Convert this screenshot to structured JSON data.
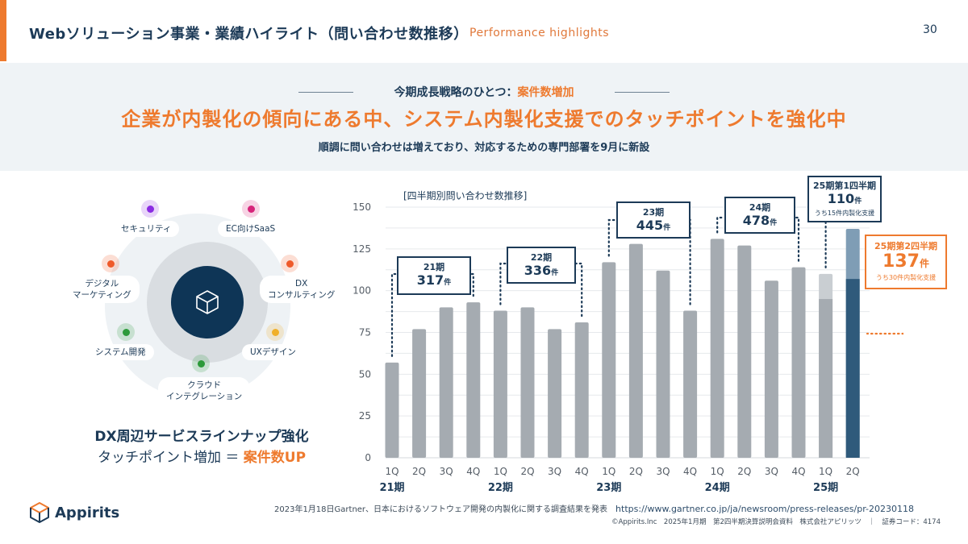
{
  "header": {
    "title": "Webソリューション事業・業績ハイライト（問い合わせ数推移）",
    "subtitle_en": "Performance highlights",
    "page_number": "30"
  },
  "banner": {
    "lead_prefix": "今期成長戦略のひとつ：",
    "lead_highlight": "案件数増加",
    "headline": "企業が内製化の傾向にある中、システム内製化支援でのタッチポイントを強化中",
    "description": "順調に問い合わせは増えており、対応するための専門部署を9月に新設"
  },
  "services": {
    "center_icon": "box-icon",
    "items": [
      {
        "label": "セキュリティ",
        "color": "#8a2be2"
      },
      {
        "label": "EC向けSaaS",
        "color": "#d6247a"
      },
      {
        "label": "DX\nコンサルティング",
        "color": "#ee5a2a"
      },
      {
        "label": "UXデザイン",
        "color": "#f0b02a"
      },
      {
        "label": "クラウド\nインテグレーション",
        "color": "#2c9a3a"
      },
      {
        "label": "システム開発",
        "color": "#2c9a3a"
      },
      {
        "label": "デジタル\nマーケティング",
        "color": "#ee5a2a"
      }
    ],
    "tagline": "DX周辺サービスラインナップ強化",
    "equation_prefix": "タッチポイント増加 ＝ ",
    "equation_highlight": "案件数UP"
  },
  "chart_data": {
    "type": "bar",
    "title": "[四半期別問い合わせ数推移]",
    "xlabel": "",
    "ylabel": "",
    "ylim": [
      0,
      150
    ],
    "yticks": [
      0,
      25,
      50,
      75,
      100,
      125,
      150
    ],
    "grid": true,
    "categories": [
      "1Q",
      "2Q",
      "3Q",
      "4Q",
      "1Q",
      "2Q",
      "3Q",
      "4Q",
      "1Q",
      "2Q",
      "3Q",
      "4Q",
      "1Q",
      "2Q",
      "3Q",
      "4Q",
      "1Q",
      "2Q"
    ],
    "periods": [
      {
        "label": "21期",
        "start": 0,
        "count": 4,
        "total": "317",
        "callout_label": "21期"
      },
      {
        "label": "22期",
        "start": 4,
        "count": 4,
        "total": "336",
        "callout_label": "22期"
      },
      {
        "label": "23期",
        "start": 8,
        "count": 4,
        "total": "445",
        "callout_label": "23期"
      },
      {
        "label": "24期",
        "start": 12,
        "count": 4,
        "total": "478",
        "callout_label": "24期"
      },
      {
        "label": "25期",
        "start": 16,
        "count": 2
      }
    ],
    "series": [
      {
        "name": "問い合わせ数",
        "values": [
          57,
          77,
          90,
          93,
          88,
          90,
          77,
          81,
          117,
          128,
          112,
          88,
          131,
          127,
          106,
          114,
          110,
          137
        ]
      },
      {
        "name": "うち内製化支援",
        "values": [
          null,
          null,
          null,
          null,
          null,
          null,
          null,
          null,
          null,
          null,
          null,
          null,
          null,
          null,
          null,
          null,
          15,
          30
        ]
      }
    ],
    "colors": {
      "past": "#a5abb1",
      "q1_inhouse": "#c9ced2",
      "q2_total": "#7f9db5",
      "q2_base": "#2f5a7b"
    },
    "unit": "件",
    "callouts_25": [
      {
        "period": "25期第1四半期",
        "value": "110",
        "note": "うち15件内製化支援"
      },
      {
        "period": "25期第2四半期",
        "value": "137",
        "note": "うち30件内製化支援"
      }
    ]
  },
  "footer": {
    "logo_text": "Appirits",
    "source": "2023年1月18日Gartner、日本におけるソフトウェア開発の内製化に関する調査結果を発表",
    "source_url": "https://www.gartner.co.jp/ja/newsroom/press-releases/pr-20230118",
    "copyright": "©Appirits.Inc　2025年1月期　第2四半期決算説明会資料　株式会社アピリッツ　｜　証券コード：4174"
  }
}
